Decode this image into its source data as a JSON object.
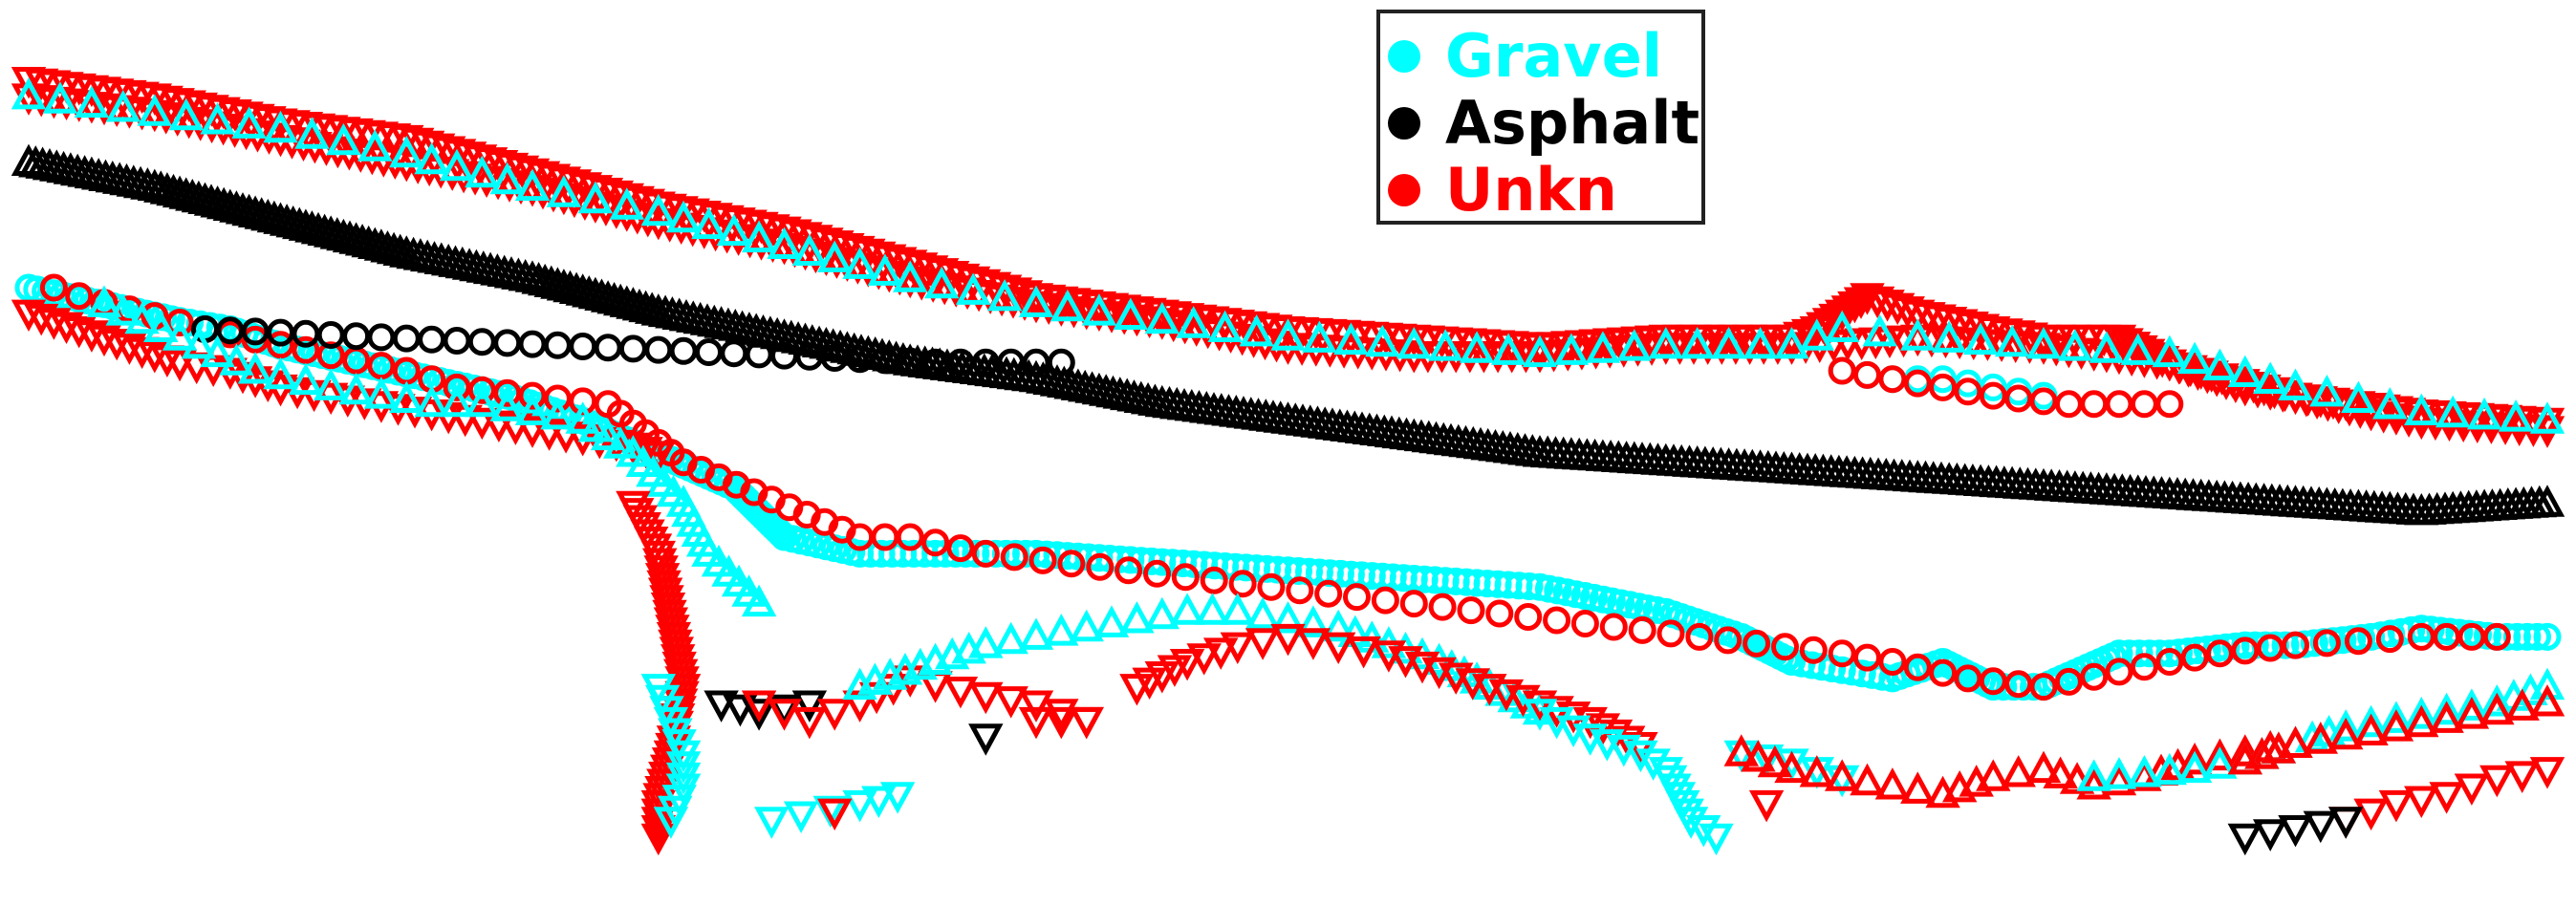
{
  "chart_data": {
    "type": "scatter",
    "title": "",
    "xlabel": "",
    "ylabel": "",
    "axes_visible": false,
    "grid": false,
    "legend": {
      "placement": "top-center"
    },
    "xlim": [
      0,
      100
    ],
    "ylim": [
      0,
      100
    ],
    "series": [
      {
        "name": "Gravel",
        "color": "#00ffff"
      },
      {
        "name": "Asphalt",
        "color": "#000000"
      },
      {
        "name": "Unkn",
        "color": "#ff0000"
      }
    ],
    "tracks": [
      {
        "series": "Unkn",
        "marker": "triangle-down",
        "step": 0.55,
        "x": [
          0,
          5,
          10,
          15,
          20,
          25,
          30,
          35,
          40,
          45,
          50,
          55,
          60,
          65,
          70,
          71,
          73,
          75,
          78,
          80,
          83,
          85,
          88,
          90,
          93,
          95,
          100
        ],
        "y": [
          95,
          93,
          90,
          88,
          84,
          80,
          77,
          73,
          69,
          67,
          65,
          64,
          63,
          64,
          64,
          65,
          69,
          67,
          65,
          64,
          64,
          61,
          58,
          57,
          55,
          54,
          53
        ]
      },
      {
        "series": "Unkn",
        "marker": "triangle-down",
        "step": 0.55,
        "x": [
          0,
          5,
          10,
          15,
          20,
          25,
          30,
          35,
          40,
          45,
          50,
          55,
          60,
          65,
          70,
          75,
          80,
          85,
          90,
          95,
          100
        ],
        "y": [
          93,
          91,
          88,
          85,
          82,
          78,
          75,
          71,
          68,
          66,
          63,
          62,
          62,
          63,
          63,
          64,
          63,
          61,
          57,
          55,
          54
        ]
      },
      {
        "series": "Gravel",
        "marker": "triangle-up",
        "step": 1.4,
        "x": [
          0,
          5,
          10,
          15,
          20,
          25,
          30,
          35,
          40,
          45,
          50,
          55,
          60,
          65,
          70,
          72,
          75,
          80,
          85,
          90,
          95,
          100
        ],
        "y": [
          93,
          91,
          89,
          86,
          82,
          79,
          75,
          71,
          68,
          66,
          64,
          63,
          62,
          63,
          63,
          65,
          64,
          63,
          62,
          58,
          55,
          54
        ]
      },
      {
        "series": "Asphalt",
        "marker": "triangle-up",
        "step": 0.32,
        "x": [
          0,
          5,
          10,
          15,
          20,
          25,
          30,
          35,
          40,
          45,
          50,
          55,
          60,
          65,
          70,
          75,
          80,
          85,
          90,
          95,
          100
        ],
        "y": [
          85,
          82,
          78,
          74,
          71,
          67,
          64,
          61,
          59,
          56,
          54,
          52,
          50,
          49,
          48,
          47,
          46,
          45,
          44,
          43,
          44
        ]
      },
      {
        "series": "Gravel",
        "marker": "circle",
        "step": 0.42,
        "x": [
          0,
          3,
          6,
          8,
          10,
          13,
          16,
          19,
          22,
          25,
          28,
          30,
          33,
          36,
          40,
          45,
          50,
          55,
          60,
          65,
          68,
          70,
          72,
          74,
          76,
          78,
          80,
          83,
          85,
          88,
          90,
          93,
          95,
          98,
          100
        ],
        "y": [
          70,
          68,
          66,
          65,
          63,
          61,
          59,
          57,
          54,
          50,
          46,
          40,
          38,
          38,
          38,
          37,
          36,
          35,
          34,
          31,
          28,
          25,
          24,
          23,
          25,
          22,
          22,
          26,
          26,
          27,
          27,
          28,
          29,
          28,
          28
        ]
      },
      {
        "series": "Unkn",
        "marker": "circle",
        "step": 1.2,
        "x": [
          1,
          2,
          7,
          15,
          17,
          20,
          23,
          26,
          33,
          35,
          38,
          72,
          74,
          77,
          80,
          85,
          87,
          90,
          95,
          98
        ],
        "y": [
          70,
          69,
          65,
          60,
          58,
          57,
          56,
          49,
          40,
          40,
          38,
          26,
          25,
          23,
          22,
          25,
          26,
          27,
          28,
          28
        ]
      },
      {
        "series": "Asphalt",
        "marker": "circle",
        "step": 1.0,
        "x": [
          7,
          36,
          39,
          41
        ],
        "y": [
          65,
          61,
          61,
          61
        ]
      },
      {
        "series": "Gravel",
        "marker": "circle",
        "step": 1.1,
        "x": [
          72,
          74,
          76,
          78,
          80
        ],
        "y": [
          60,
          59,
          59,
          58,
          57
        ]
      },
      {
        "series": "Unkn",
        "marker": "circle",
        "step": 1.1,
        "x": [
          72,
          78,
          81,
          83,
          85
        ],
        "y": [
          60,
          57,
          56,
          56,
          56
        ]
      },
      {
        "series": "Unkn",
        "marker": "triangle-down",
        "step": 0.75,
        "x": [
          0,
          2,
          4,
          6,
          8,
          10,
          12,
          14,
          16,
          18,
          20,
          22,
          24,
          25
        ],
        "y": [
          67,
          65,
          63,
          61,
          60,
          58,
          57,
          56,
          55,
          54,
          53,
          52,
          51,
          50
        ]
      },
      {
        "series": "Gravel",
        "marker": "triangle-up",
        "step": 1.2,
        "x": [
          3,
          6,
          9,
          12,
          14,
          16,
          18,
          20,
          22,
          24,
          26,
          27,
          29
        ],
        "y": [
          68,
          64,
          60,
          58,
          57,
          56,
          56,
          55,
          54,
          50,
          44,
          38,
          32
        ]
      },
      {
        "series": "Unkn",
        "marker": "triangle-down",
        "step": 0.9,
        "x": [
          24,
          25,
          25.5,
          26,
          25.5,
          25,
          25
        ],
        "y": [
          44,
          38,
          30,
          22,
          14,
          8,
          4
        ]
      },
      {
        "series": "Gravel",
        "marker": "triangle-down",
        "step": 1.2,
        "x": [
          25,
          25.5,
          26,
          26,
          25.5
        ],
        "y": [
          22,
          18,
          14,
          10,
          6
        ]
      },
      {
        "series": "Asphalt",
        "marker": "triangle-down",
        "step": 1.0,
        "x": [
          27.5,
          29,
          31
        ],
        "y": [
          20,
          19,
          20
        ]
      },
      {
        "series": "Unkn",
        "marker": "triangle-down",
        "step": 1.2,
        "x": [
          29,
          31,
          33,
          35,
          38,
          40,
          42
        ],
        "y": [
          20,
          18,
          20,
          23,
          21,
          20,
          18
        ]
      },
      {
        "series": "Gravel",
        "marker": "triangle-up",
        "step": 0.9,
        "x": [
          33,
          36,
          38,
          40,
          42,
          44,
          46,
          48,
          50,
          52,
          54,
          56,
          58,
          60
        ],
        "y": [
          22,
          25,
          27,
          28,
          29,
          30,
          31,
          31,
          30,
          29,
          27,
          25,
          22,
          19
        ]
      },
      {
        "series": "Unkn",
        "marker": "triangle-down",
        "step": 1.0,
        "x": [
          44,
          46,
          48,
          50,
          52,
          54,
          56,
          58,
          60,
          62,
          64
        ],
        "y": [
          22,
          25,
          27,
          28,
          27,
          26,
          24,
          22,
          20,
          18,
          15
        ]
      },
      {
        "series": "Gravel",
        "marker": "triangle-down",
        "step": 1.1,
        "x": [
          60,
          62,
          64,
          65,
          65.5,
          66,
          67
        ],
        "y": [
          19,
          16,
          14,
          12,
          9,
          6,
          4
        ]
      },
      {
        "series": "Gravel",
        "marker": "triangle-down",
        "step": 1.1,
        "x": [
          68,
          70,
          71,
          72
        ],
        "y": [
          14,
          13,
          12,
          11
        ]
      },
      {
        "series": "Unkn",
        "marker": "triangle-up",
        "step": 1.1,
        "x": [
          68,
          70,
          72,
          74,
          76,
          78,
          80,
          82,
          84,
          86,
          88,
          90
        ],
        "y": [
          14,
          12,
          11,
          10,
          9,
          11,
          12,
          10,
          11,
          13,
          14,
          15
        ]
      },
      {
        "series": "Gravel",
        "marker": "triangle-up",
        "step": 1.0,
        "x": [
          82,
          86,
          88,
          90,
          92,
          94,
          96,
          98,
          100
        ],
        "y": [
          11,
          12,
          13,
          15,
          17,
          18,
          19,
          20,
          22
        ]
      },
      {
        "series": "Unkn",
        "marker": "triangle-up",
        "step": 1.1,
        "x": [
          88,
          90,
          92,
          94,
          96,
          98,
          100
        ],
        "y": [
          13,
          15,
          16,
          17,
          18,
          19,
          20
        ]
      },
      {
        "series": "Unkn",
        "marker": "triangle-down",
        "step": 1.2,
        "x": [
          92,
          94,
          96,
          98,
          100
        ],
        "y": [
          6,
          8,
          9,
          11,
          12
        ]
      },
      {
        "series": "Asphalt",
        "marker": "triangle-down",
        "step": 1.2,
        "x": [
          88,
          90,
          92
        ],
        "y": [
          4,
          5,
          6
        ]
      },
      {
        "series": "Gravel",
        "marker": "triangle-down",
        "step": 1.2,
        "x": [
          29.5,
          33,
          34.5
        ],
        "y": [
          6,
          8,
          9
        ]
      },
      {
        "series": "Unkn",
        "marker": "triangle-down",
        "step": 1.2,
        "x": [
          32
        ],
        "y": [
          7
        ]
      },
      {
        "series": "Asphalt",
        "marker": "triangle-down",
        "step": 1.2,
        "x": [
          38
        ],
        "y": [
          16
        ]
      },
      {
        "series": "Unkn",
        "marker": "triangle-down",
        "step": 1.2,
        "x": [
          40,
          42
        ],
        "y": [
          18,
          18
        ]
      },
      {
        "series": "Unkn",
        "marker": "triangle-down",
        "step": 1.2,
        "x": [
          69
        ],
        "y": [
          8
        ]
      }
    ]
  }
}
